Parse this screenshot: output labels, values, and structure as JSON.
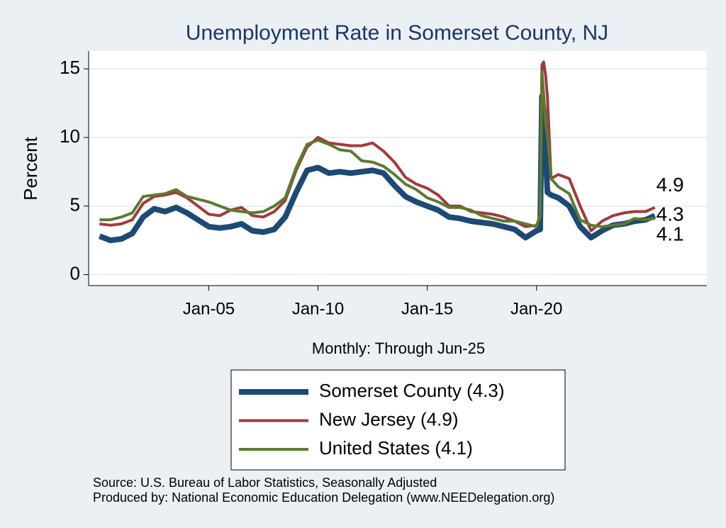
{
  "chart_data": {
    "type": "line",
    "title": "Unemployment Rate in Somerset  County, NJ",
    "ylabel": "Percent",
    "xlabel": "Monthly: Through Jun-25",
    "notes": [
      "Source: U.S. Bureau of Labor Statistics, Seasonally Adjusted",
      "Produced by: National Economic Education Delegation (www.NEEDelegation.org)"
    ],
    "xlim": [
      1999.5,
      2027.8
    ],
    "xticks": [
      {
        "value": 2005,
        "label": "Jan-05"
      },
      {
        "value": 2010,
        "label": "Jan-10"
      },
      {
        "value": 2015,
        "label": "Jan-15"
      },
      {
        "value": 2020,
        "label": "Jan-20"
      }
    ],
    "ylim": [
      -0.8,
      16.3
    ],
    "yticks": [
      0,
      5,
      10,
      15
    ],
    "grid": true,
    "x": [
      2000.0,
      2000.5,
      2001.0,
      2001.5,
      2002.0,
      2002.5,
      2003.0,
      2003.5,
      2004.0,
      2004.5,
      2005.0,
      2005.5,
      2006.0,
      2006.5,
      2007.0,
      2007.5,
      2008.0,
      2008.5,
      2009.0,
      2009.5,
      2010.0,
      2010.5,
      2011.0,
      2011.5,
      2012.0,
      2012.5,
      2013.0,
      2013.5,
      2014.0,
      2014.5,
      2015.0,
      2015.5,
      2016.0,
      2016.5,
      2017.0,
      2017.5,
      2018.0,
      2018.5,
      2019.0,
      2019.5,
      2020.0,
      2020.17,
      2020.25,
      2020.33,
      2020.42,
      2020.5,
      2020.67,
      2021.0,
      2021.5,
      2022.0,
      2022.5,
      2023.0,
      2023.5,
      2024.0,
      2024.5,
      2025.0,
      2025.42
    ],
    "series": [
      {
        "name": "Somerset  County (4.3)",
        "color": "#1d4a74",
        "width": 8,
        "end_label": "4.3",
        "values": [
          2.8,
          2.5,
          2.6,
          3.0,
          4.2,
          4.8,
          4.6,
          4.9,
          4.5,
          4.0,
          3.5,
          3.4,
          3.5,
          3.7,
          3.2,
          3.1,
          3.3,
          4.2,
          6.0,
          7.6,
          7.8,
          7.4,
          7.5,
          7.4,
          7.5,
          7.6,
          7.4,
          6.5,
          5.7,
          5.3,
          5.0,
          4.7,
          4.2,
          4.1,
          3.9,
          3.8,
          3.7,
          3.5,
          3.3,
          2.7,
          3.2,
          3.3,
          13.0,
          12.0,
          9.0,
          6.0,
          5.8,
          5.6,
          5.0,
          3.5,
          2.7,
          3.2,
          3.6,
          3.7,
          3.9,
          4.0,
          4.3
        ]
      },
      {
        "name": "New Jersey (4.9)",
        "color": "#a23a3c",
        "width": 4,
        "end_label": "4.9",
        "values": [
          3.7,
          3.6,
          3.7,
          4.0,
          5.2,
          5.7,
          5.8,
          6.0,
          5.6,
          5.0,
          4.4,
          4.3,
          4.7,
          4.9,
          4.3,
          4.2,
          4.6,
          5.4,
          7.6,
          9.3,
          10.0,
          9.6,
          9.5,
          9.4,
          9.4,
          9.6,
          9.0,
          8.2,
          7.1,
          6.6,
          6.3,
          5.8,
          5.0,
          5.0,
          4.6,
          4.5,
          4.4,
          4.2,
          3.9,
          3.5,
          3.6,
          4.2,
          15.3,
          15.5,
          14.5,
          13.0,
          7.0,
          7.3,
          7.0,
          5.0,
          3.2,
          3.9,
          4.3,
          4.5,
          4.6,
          4.6,
          4.9
        ]
      },
      {
        "name": "United States (4.1)",
        "color": "#5c7a2e",
        "width": 4,
        "end_label": "4.1",
        "values": [
          4.0,
          4.0,
          4.2,
          4.5,
          5.7,
          5.8,
          5.9,
          6.2,
          5.7,
          5.5,
          5.3,
          5.0,
          4.7,
          4.6,
          4.5,
          4.6,
          5.0,
          5.6,
          7.8,
          9.5,
          9.8,
          9.5,
          9.1,
          9.0,
          8.3,
          8.2,
          7.9,
          7.3,
          6.6,
          6.2,
          5.6,
          5.3,
          4.9,
          4.9,
          4.7,
          4.3,
          4.1,
          3.9,
          3.9,
          3.7,
          3.5,
          4.4,
          14.8,
          13.2,
          11.0,
          10.2,
          7.0,
          6.4,
          5.9,
          4.0,
          3.6,
          3.5,
          3.6,
          3.7,
          4.1,
          4.0,
          4.1
        ]
      }
    ]
  }
}
